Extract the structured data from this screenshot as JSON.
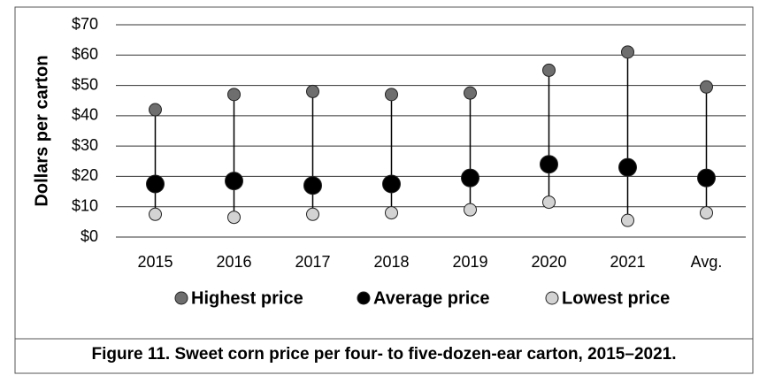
{
  "chart_data": {
    "type": "dot",
    "caption": "Figure 11. Sweet corn price per four- to five-dozen-ear carton, 2015–2021.",
    "y_label": "Dollars per carton",
    "categories": [
      "2015",
      "2016",
      "2017",
      "2018",
      "2019",
      "2020",
      "2021",
      "Avg."
    ],
    "series": [
      {
        "name": "Highest price",
        "color": "#6e6e6e",
        "values": [
          42,
          47,
          48,
          47,
          47.5,
          55,
          61,
          49.5
        ]
      },
      {
        "name": "Average price",
        "color": "#000000",
        "values": [
          17.5,
          18.5,
          17,
          17.5,
          19.5,
          24,
          23,
          19.5
        ]
      },
      {
        "name": "Lowest price",
        "color": "#d3d3d3",
        "values": [
          7.5,
          6.5,
          7.5,
          8,
          9,
          11.5,
          5.5,
          8
        ]
      }
    ],
    "ylim": [
      0,
      70
    ],
    "yticks": [
      {
        "value": 0,
        "label": "$0"
      },
      {
        "value": 10,
        "label": "$10"
      },
      {
        "value": 20,
        "label": "$20"
      },
      {
        "value": 30,
        "label": "$30"
      },
      {
        "value": 40,
        "label": "$40"
      },
      {
        "value": 50,
        "label": "$50"
      },
      {
        "value": 60,
        "label": "$60"
      },
      {
        "value": 70,
        "label": "$70"
      }
    ],
    "grid": true,
    "legend": "bottom"
  }
}
